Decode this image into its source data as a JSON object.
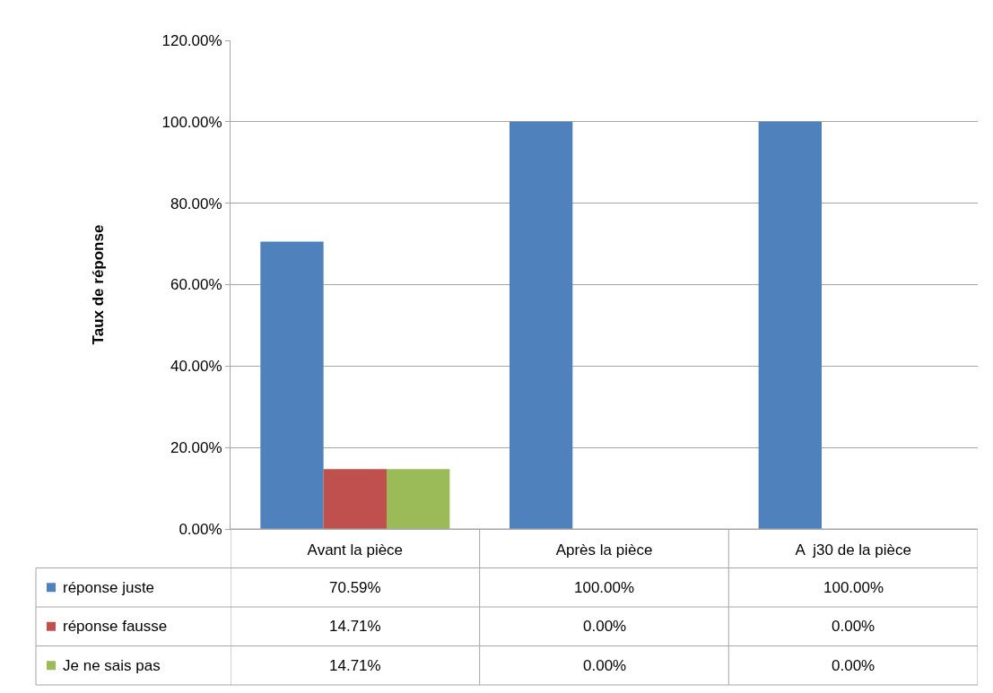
{
  "chart_data": {
    "type": "bar",
    "ylabel": "Taux de réponse",
    "categories": [
      "Avant la pièce",
      "Après la pièce",
      "A  j30 de la pièce"
    ],
    "series": [
      {
        "name": "réponse juste",
        "color": "#4f81bd",
        "values": [
          70.59,
          100,
          100
        ],
        "value_labels": [
          "70.59%",
          "100.00%",
          "100.00%"
        ]
      },
      {
        "name": "réponse fausse",
        "color": "#c0504d",
        "values": [
          14.71,
          0,
          0
        ],
        "value_labels": [
          "14.71%",
          "0.00%",
          "0.00%"
        ]
      },
      {
        "name": "Je ne sais pas",
        "color": "#9bbb59",
        "values": [
          14.71,
          0,
          0
        ],
        "value_labels": [
          "14.71%",
          "0.00%",
          "0.00%"
        ]
      }
    ],
    "ylim": [
      0,
      120
    ],
    "yticks": [
      {
        "value": 0,
        "label": "0.00%"
      },
      {
        "value": 20,
        "label": "20.00%"
      },
      {
        "value": 40,
        "label": "40.00%"
      },
      {
        "value": 60,
        "label": "60.00%"
      },
      {
        "value": 80,
        "label": "80.00%"
      },
      {
        "value": 100,
        "label": "100.00%"
      },
      {
        "value": 120,
        "label": "120.00%"
      }
    ],
    "grid": "y",
    "legend": "bottom"
  }
}
